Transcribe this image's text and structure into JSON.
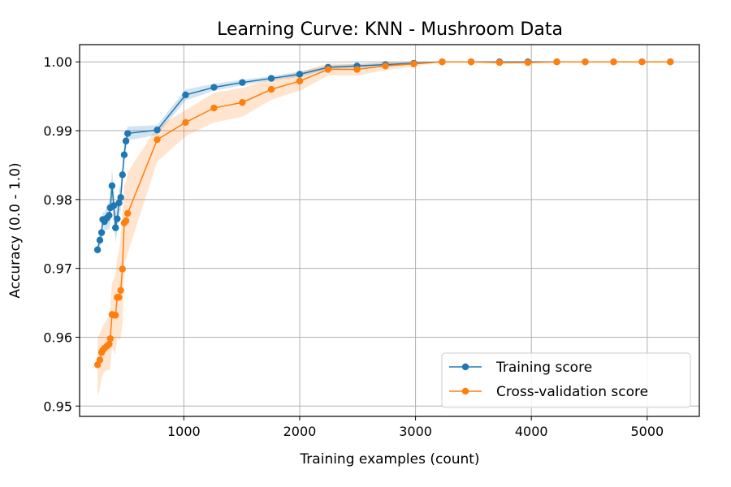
{
  "chart_data": {
    "type": "line",
    "title": "Learning Curve: KNN - Mushroom Data",
    "xlabel": "Training examples (count)",
    "ylabel": "Accuracy (0.0 - 1.0)",
    "xlim": [
      100,
      5450
    ],
    "ylim": [
      0.9485,
      1.0025
    ],
    "xticks": [
      1000,
      2000,
      3000,
      4000,
      5000
    ],
    "yticks": [
      0.95,
      0.96,
      0.97,
      0.98,
      0.99,
      1.0
    ],
    "xtick_labels": [
      "1000",
      "2000",
      "3000",
      "4000",
      "5000"
    ],
    "ytick_labels": [
      "0.95",
      "0.96",
      "0.97",
      "0.98",
      "0.99",
      "1.00"
    ],
    "grid": true,
    "legend_position": "bottom-right",
    "series": [
      {
        "name": "Training score",
        "color": "#1f77b4",
        "x": [
          255,
          275,
          290,
          300,
          315,
          335,
          355,
          365,
          380,
          395,
          410,
          425,
          440,
          455,
          470,
          485,
          500,
          515,
          770,
          1015,
          1260,
          1505,
          1755,
          2000,
          2245,
          2495,
          2740,
          2985,
          3230,
          3480,
          3725,
          3970,
          4220,
          4465,
          4710,
          4955,
          5200
        ],
        "y": [
          0.9727,
          0.9741,
          0.9752,
          0.9771,
          0.9768,
          0.9773,
          0.9777,
          0.9788,
          0.982,
          0.9791,
          0.9759,
          0.9772,
          0.9795,
          0.9803,
          0.9836,
          0.9865,
          0.9885,
          0.9896,
          0.9901,
          0.9952,
          0.9963,
          0.997,
          0.9976,
          0.9982,
          0.9992,
          0.9994,
          0.9996,
          0.9998,
          1.0,
          1.0,
          1.0,
          1.0,
          1.0,
          1.0,
          1.0,
          1.0,
          1.0
        ],
        "band_upper": [
          0.9735,
          0.9752,
          0.9764,
          0.9782,
          0.9781,
          0.979,
          0.9797,
          0.981,
          0.9845,
          0.9818,
          0.978,
          0.9792,
          0.9815,
          0.9821,
          0.9852,
          0.988,
          0.9897,
          0.9906,
          0.9908,
          0.996,
          0.9968,
          0.9974,
          0.9979,
          0.9986,
          0.9995,
          0.9997,
          0.9999,
          1.0,
          1.0,
          1.0,
          1.0,
          1.0,
          1.0,
          1.0,
          1.0,
          1.0,
          1.0
        ],
        "band_lower": [
          0.9719,
          0.973,
          0.974,
          0.976,
          0.9755,
          0.9756,
          0.9757,
          0.9766,
          0.9795,
          0.9764,
          0.9738,
          0.9752,
          0.9775,
          0.9785,
          0.982,
          0.985,
          0.9873,
          0.9886,
          0.9894,
          0.9944,
          0.9958,
          0.9966,
          0.9973,
          0.9978,
          0.9989,
          0.9991,
          0.9993,
          0.9996,
          1.0,
          1.0,
          1.0,
          1.0,
          1.0,
          1.0,
          1.0,
          1.0,
          1.0
        ]
      },
      {
        "name": "Cross-validation score",
        "color": "#ff7f0e",
        "x": [
          255,
          275,
          290,
          300,
          315,
          335,
          355,
          365,
          380,
          395,
          410,
          425,
          440,
          455,
          470,
          485,
          500,
          515,
          770,
          1015,
          1260,
          1505,
          1755,
          2000,
          2245,
          2495,
          2740,
          2985,
          3230,
          3480,
          3725,
          3970,
          4220,
          4465,
          4710,
          4955,
          5200
        ],
        "y": [
          0.956,
          0.9567,
          0.9578,
          0.9581,
          0.9584,
          0.9587,
          0.959,
          0.9598,
          0.9633,
          0.9632,
          0.9632,
          0.9658,
          0.9658,
          0.9668,
          0.9699,
          0.9766,
          0.9769,
          0.978,
          0.9887,
          0.9912,
          0.9933,
          0.9941,
          0.996,
          0.9972,
          0.9989,
          0.9989,
          0.9994,
          0.9997,
          1.0,
          1.0,
          0.9999,
          0.9999,
          1.0,
          1.0,
          1.0,
          1.0,
          1.0
        ],
        "band_upper": [
          0.96,
          0.9605,
          0.9612,
          0.9615,
          0.962,
          0.9625,
          0.9632,
          0.9642,
          0.968,
          0.9685,
          0.969,
          0.9715,
          0.9725,
          0.9745,
          0.978,
          0.982,
          0.9825,
          0.984,
          0.9905,
          0.993,
          0.9955,
          0.9962,
          0.9975,
          0.9985,
          0.9998,
          0.9997,
          0.9999,
          1.0,
          1.0,
          1.0,
          1.0,
          1.0,
          1.0,
          1.0,
          1.0,
          1.0,
          1.0
        ],
        "band_lower": [
          0.9515,
          0.9525,
          0.954,
          0.9545,
          0.955,
          0.9552,
          0.9552,
          0.9555,
          0.9585,
          0.958,
          0.9575,
          0.96,
          0.9595,
          0.96,
          0.962,
          0.971,
          0.9712,
          0.9722,
          0.9855,
          0.9892,
          0.9912,
          0.992,
          0.9945,
          0.9958,
          0.998,
          0.998,
          0.9988,
          0.9993,
          1.0,
          0.9999,
          0.9997,
          0.9997,
          1.0,
          1.0,
          1.0,
          1.0,
          1.0
        ]
      }
    ]
  }
}
